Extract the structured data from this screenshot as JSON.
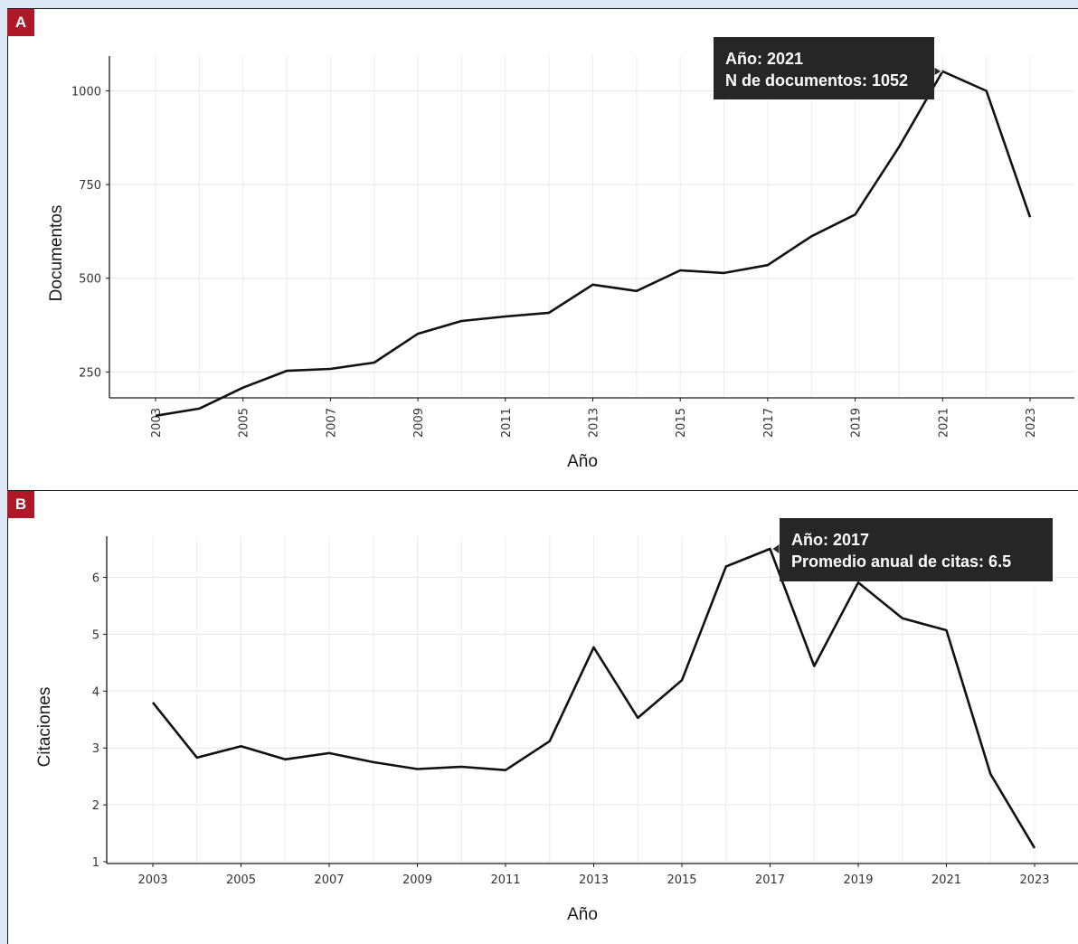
{
  "panels": {
    "a": {
      "label": "A"
    },
    "b": {
      "label": "B"
    }
  },
  "chart_data": [
    {
      "type": "line",
      "xlabel": "Año",
      "ylabel": "Documentos",
      "x": [
        2003,
        2004,
        2005,
        2006,
        2007,
        2008,
        2009,
        2010,
        2011,
        2012,
        2013,
        2014,
        2015,
        2016,
        2017,
        2018,
        2019,
        2020,
        2021,
        2022,
        2023
      ],
      "values": [
        133,
        152,
        208,
        253,
        258,
        275,
        352,
        386,
        398,
        408,
        483,
        466,
        521,
        514,
        535,
        612,
        670,
        850,
        1052,
        1000,
        663
      ],
      "ylim": [
        0,
        1100
      ],
      "xticks": [
        "2003",
        "2005",
        "2007",
        "2009",
        "2011",
        "2013",
        "2015",
        "2017",
        "2019",
        "2021",
        "2023"
      ],
      "yticks": [
        "250",
        "500",
        "750",
        "1000"
      ],
      "grid": true,
      "tooltip": {
        "x": 2021,
        "line1": "Año: 2021",
        "line2": "N de documentos: 1052"
      }
    },
    {
      "type": "line",
      "xlabel": "Año",
      "ylabel": "Citaciones",
      "x": [
        2003,
        2004,
        2005,
        2006,
        2007,
        2008,
        2009,
        2010,
        2011,
        2012,
        2013,
        2014,
        2015,
        2016,
        2017,
        2018,
        2019,
        2020,
        2021,
        2022,
        2023
      ],
      "values": [
        3.8,
        2.83,
        3.03,
        2.8,
        2.91,
        2.75,
        2.63,
        2.67,
        2.61,
        3.12,
        4.77,
        3.53,
        4.19,
        6.19,
        6.5,
        4.44,
        5.91,
        5.28,
        5.07,
        2.54,
        1.24
      ],
      "ylim": [
        1,
        6.7
      ],
      "xticks": [
        "2003",
        "2005",
        "2007",
        "2009",
        "2011",
        "2013",
        "2015",
        "2017",
        "2019",
        "2021",
        "2023"
      ],
      "yticks": [
        "1",
        "2",
        "3",
        "4",
        "5",
        "6"
      ],
      "grid": true,
      "tooltip": {
        "x": 2017,
        "line1": "Año: 2017",
        "line2": "Promedio anual de citas: 6.5"
      }
    }
  ]
}
